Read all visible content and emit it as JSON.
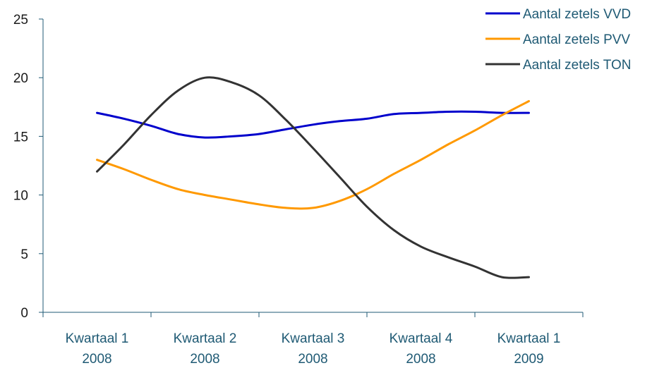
{
  "chart_data": {
    "type": "line",
    "categories": [
      [
        "Kwartaal 1",
        "2008"
      ],
      [
        "Kwartaal 2",
        "2008"
      ],
      [
        "Kwartaal 3",
        "2008"
      ],
      [
        "Kwartaal 4",
        "2008"
      ],
      [
        "Kwartaal 1",
        "2009"
      ]
    ],
    "x": [
      1,
      1.25,
      1.5,
      1.75,
      2,
      2.25,
      2.5,
      2.75,
      3,
      3.25,
      3.5,
      3.75,
      4,
      4.25,
      4.5,
      4.75,
      5
    ],
    "series": [
      {
        "name": "Aantal zetels VVD",
        "color": "#0000cc",
        "values": [
          17,
          16.5,
          15.9,
          15.2,
          14.9,
          15.0,
          15.2,
          15.6,
          16.0,
          16.3,
          16.5,
          16.9,
          17.0,
          17.1,
          17.1,
          17.0,
          17.0
        ]
      },
      {
        "name": "Aantal zetels PVV",
        "color": "#ff9900",
        "values": [
          13,
          12.2,
          11.3,
          10.5,
          10.0,
          9.6,
          9.2,
          8.9,
          8.9,
          9.5,
          10.5,
          11.8,
          13.0,
          14.3,
          15.5,
          16.8,
          18.0
        ]
      },
      {
        "name": "Aantal zetels TON",
        "color": "#333333",
        "values": [
          12,
          14.3,
          16.8,
          18.9,
          20.0,
          19.6,
          18.5,
          16.4,
          14.0,
          11.5,
          9.0,
          7.0,
          5.6,
          4.7,
          3.9,
          3.0,
          3.0
        ]
      }
    ],
    "yticks": [
      0,
      5,
      10,
      15,
      20,
      25
    ],
    "ylim": [
      0,
      25
    ],
    "grid": false,
    "legend_position": "top-right",
    "title": "",
    "xlabel": "",
    "ylabel": ""
  }
}
